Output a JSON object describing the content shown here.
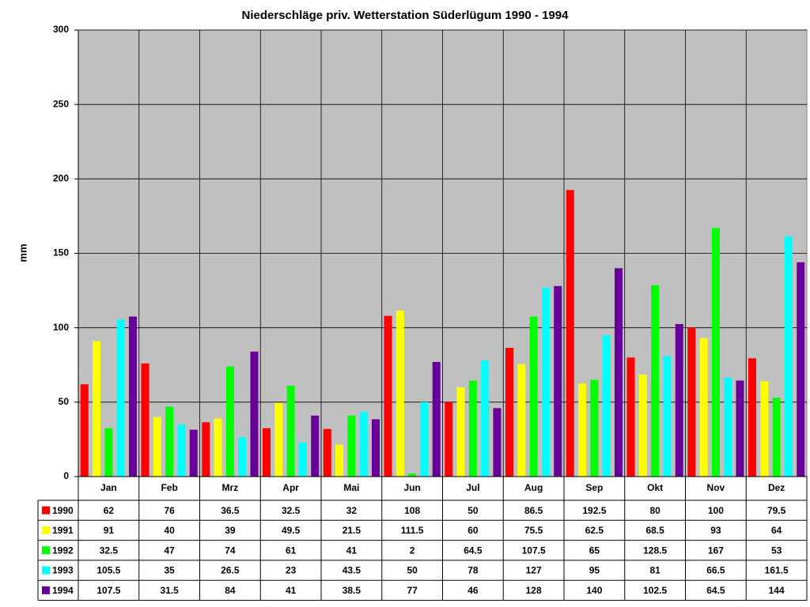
{
  "chart_data": {
    "type": "bar",
    "title": "Niederschläge priv. Wetterstation Süderlügum 1990 - 1994",
    "y_label": "mm",
    "categories": [
      "Jan",
      "Feb",
      "Mrz",
      "Apr",
      "Mai",
      "Jun",
      "Jul",
      "Aug",
      "Sep",
      "Okt",
      "Nov",
      "Dez"
    ],
    "series": [
      {
        "name": "1990",
        "color": "#ff0000",
        "values": [
          62,
          76,
          36.5,
          32.5,
          32,
          108,
          50,
          86.5,
          192.5,
          80,
          100,
          79.5
        ]
      },
      {
        "name": "1991",
        "color": "#ffff00",
        "values": [
          91,
          40,
          39,
          49.5,
          21.5,
          111.5,
          60,
          75.5,
          62.5,
          68.5,
          93,
          64
        ]
      },
      {
        "name": "1992",
        "color": "#00ff00",
        "values": [
          32.5,
          47,
          74,
          61,
          41,
          2,
          64.5,
          107.5,
          65,
          128.5,
          167,
          53
        ]
      },
      {
        "name": "1993",
        "color": "#00ffff",
        "values": [
          105.5,
          35,
          26.5,
          23,
          43.5,
          50,
          78,
          127,
          95,
          81,
          66.5,
          161.5
        ]
      },
      {
        "name": "1994",
        "color": "#660099",
        "values": [
          107.5,
          31.5,
          84,
          41,
          38.5,
          77,
          46,
          128,
          140,
          102.5,
          64.5,
          144
        ]
      }
    ],
    "ylim": [
      0,
      300
    ],
    "yticks": [
      0,
      50,
      100,
      150,
      200,
      250,
      300
    ],
    "grid": true,
    "plot_background": "#c0c0c0",
    "data_table": true
  }
}
